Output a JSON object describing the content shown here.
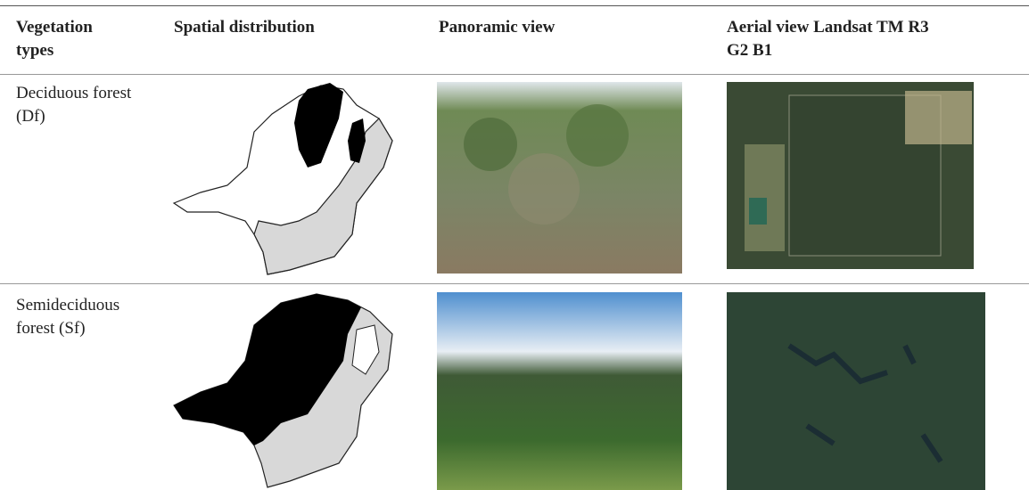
{
  "table": {
    "header": [
      "Vegetation types",
      "Spatial distribution",
      "Panoramic view",
      "Aerial view Landsat TM R3 G2 B1"
    ],
    "rows": [
      [
        "Deciduous forest (Df)"
      ],
      [
        "Semideciduous forest (Sf)"
      ]
    ]
  }
}
